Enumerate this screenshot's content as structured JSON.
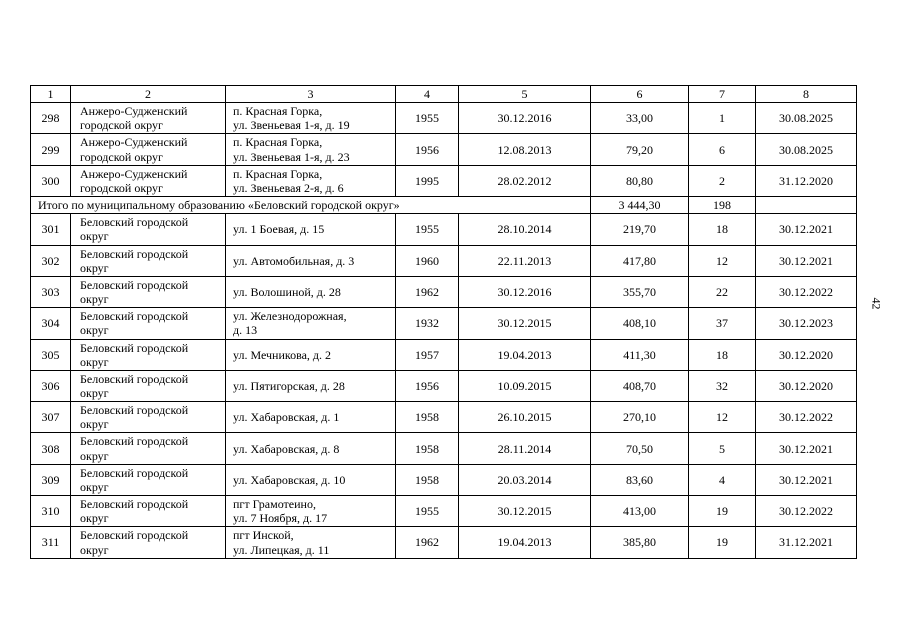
{
  "page": {
    "number": "42"
  },
  "table": {
    "columns": [
      "1",
      "2",
      "3",
      "4",
      "5",
      "6",
      "7",
      "8"
    ],
    "rows": [
      {
        "type": "data",
        "num": "298",
        "municipality": "Анжеро-Судженский\nгородской округ",
        "address": "п. Красная Горка,\nул. Звеньевая 1-я, д. 19",
        "year": "1955",
        "recognition_date": "30.12.2016",
        "area": "33,00",
        "residents": "1",
        "resettlement_date": "30.08.2025"
      },
      {
        "type": "data",
        "num": "299",
        "municipality": "Анжеро-Судженский\nгородской округ",
        "address": "п. Красная Горка,\nул. Звеньевая 1-я, д. 23",
        "year": "1956",
        "recognition_date": "12.08.2013",
        "area": "79,20",
        "residents": "6",
        "resettlement_date": "30.08.2025"
      },
      {
        "type": "data",
        "num": "300",
        "municipality": "Анжеро-Судженский\nгородской округ",
        "address": "п. Красная Горка,\nул. Звеньевая 2-я, д. 6",
        "year": "1995",
        "recognition_date": "28.02.2012",
        "area": "80,80",
        "residents": "2",
        "resettlement_date": "31.12.2020"
      },
      {
        "type": "total",
        "label": "Итого по муниципальному образованию «Беловский городской округ»",
        "area": "3 444,30",
        "residents": "198"
      },
      {
        "type": "data",
        "num": "301",
        "municipality": "Беловский городской\nокруг",
        "address": "ул. 1 Боевая, д. 15",
        "year": "1955",
        "recognition_date": "28.10.2014",
        "area": "219,70",
        "residents": "18",
        "resettlement_date": "30.12.2021"
      },
      {
        "type": "data",
        "num": "302",
        "municipality": "Беловский городской\nокруг",
        "address": "ул. Автомобильная, д. 3",
        "year": "1960",
        "recognition_date": "22.11.2013",
        "area": "417,80",
        "residents": "12",
        "resettlement_date": "30.12.2021"
      },
      {
        "type": "data",
        "num": "303",
        "municipality": "Беловский городской\nокруг",
        "address": "ул. Волошиной, д. 28",
        "year": "1962",
        "recognition_date": "30.12.2016",
        "area": "355,70",
        "residents": "22",
        "resettlement_date": "30.12.2022"
      },
      {
        "type": "data",
        "num": "304",
        "municipality": "Беловский городской\nокруг",
        "address": "ул. Железнодорожная,\nд. 13",
        "year": "1932",
        "recognition_date": "30.12.2015",
        "area": "408,10",
        "residents": "37",
        "resettlement_date": "30.12.2023"
      },
      {
        "type": "data",
        "num": "305",
        "municipality": "Беловский городской\nокруг",
        "address": "ул. Мечникова, д. 2",
        "year": "1957",
        "recognition_date": "19.04.2013",
        "area": "411,30",
        "residents": "18",
        "resettlement_date": "30.12.2020"
      },
      {
        "type": "data",
        "num": "306",
        "municipality": "Беловский городской\nокруг",
        "address": "ул. Пятигорская, д. 28",
        "year": "1956",
        "recognition_date": "10.09.2015",
        "area": "408,70",
        "residents": "32",
        "resettlement_date": "30.12.2020"
      },
      {
        "type": "data",
        "num": "307",
        "municipality": "Беловский городской\nокруг",
        "address": "ул. Хабаровская, д. 1",
        "year": "1958",
        "recognition_date": "26.10.2015",
        "area": "270,10",
        "residents": "12",
        "resettlement_date": "30.12.2022"
      },
      {
        "type": "data",
        "num": "308",
        "municipality": "Беловский городской\nокруг",
        "address": "ул. Хабаровская, д. 8",
        "year": "1958",
        "recognition_date": "28.11.2014",
        "area": "70,50",
        "residents": "5",
        "resettlement_date": "30.12.2021"
      },
      {
        "type": "data",
        "num": "309",
        "municipality": "Беловский городской\nокруг",
        "address": "ул. Хабаровская, д. 10",
        "year": "1958",
        "recognition_date": "20.03.2014",
        "area": "83,60",
        "residents": "4",
        "resettlement_date": "30.12.2021"
      },
      {
        "type": "data",
        "num": "310",
        "municipality": "Беловский городской\nокруг",
        "address": "пгт Грамотеино,\nул. 7 Ноября, д. 17",
        "year": "1955",
        "recognition_date": "30.12.2015",
        "area": "413,00",
        "residents": "19",
        "resettlement_date": "30.12.2022"
      },
      {
        "type": "data",
        "num": "311",
        "municipality": "Беловский городской\nокруг",
        "address": "пгт Инской,\nул. Липецкая, д. 11",
        "year": "1962",
        "recognition_date": "19.04.2013",
        "area": "385,80",
        "residents": "19",
        "resettlement_date": "31.12.2021"
      }
    ]
  }
}
